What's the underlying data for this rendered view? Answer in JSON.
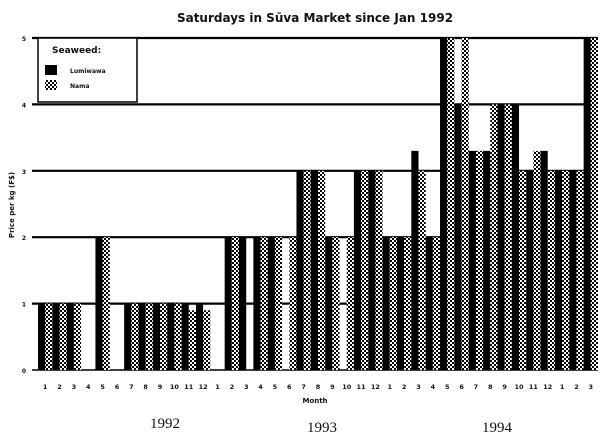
{
  "chart_data": {
    "type": "bar",
    "title": "Saturdays in Sūva Market since Jan 1992",
    "xlabel": "Month",
    "ylabel": "Price per kg (F$)",
    "ylim": [
      0,
      5
    ],
    "yticks": [
      "0",
      "1",
      "2",
      "3",
      "4",
      "5"
    ],
    "grid": true,
    "legend": {
      "title": "Seaweed:",
      "placement": "top-left"
    },
    "categories": [
      "1",
      "2",
      "3",
      "4",
      "5",
      "6",
      "7",
      "8",
      "9",
      "10",
      "11",
      "12",
      "1",
      "2",
      "3",
      "4",
      "5",
      "6",
      "7",
      "8",
      "9",
      "10",
      "11",
      "12",
      "1",
      "2",
      "3",
      "4",
      "5",
      "6",
      "7",
      "8",
      "9",
      "10",
      "11",
      "12",
      "1",
      "2",
      "3"
    ],
    "year_labels": [
      "1992",
      "1993",
      "1994"
    ],
    "series": [
      {
        "name": "Lumiwawa",
        "pattern": "solid",
        "color": "#000000",
        "values": [
          1,
          1,
          1,
          0,
          2,
          0,
          1,
          1,
          1,
          1,
          1,
          1,
          0,
          2,
          2,
          2,
          2,
          0,
          3,
          3,
          2,
          0,
          3,
          3,
          2,
          2,
          3.3,
          2,
          5,
          4,
          3.3,
          3.3,
          4,
          4,
          3,
          3.3,
          3,
          3,
          5
        ]
      },
      {
        "name": "Nama",
        "pattern": "checkered",
        "color": "#000000",
        "values": [
          1,
          1,
          1,
          0,
          2,
          0,
          1,
          1,
          1,
          1,
          0.9,
          0.9,
          0,
          2,
          0,
          2,
          2,
          2,
          3,
          3,
          2,
          2,
          3,
          3,
          2,
          2,
          3,
          2,
          5,
          5,
          3.3,
          4,
          4,
          3,
          3.3,
          3,
          3,
          3,
          5
        ]
      }
    ]
  }
}
